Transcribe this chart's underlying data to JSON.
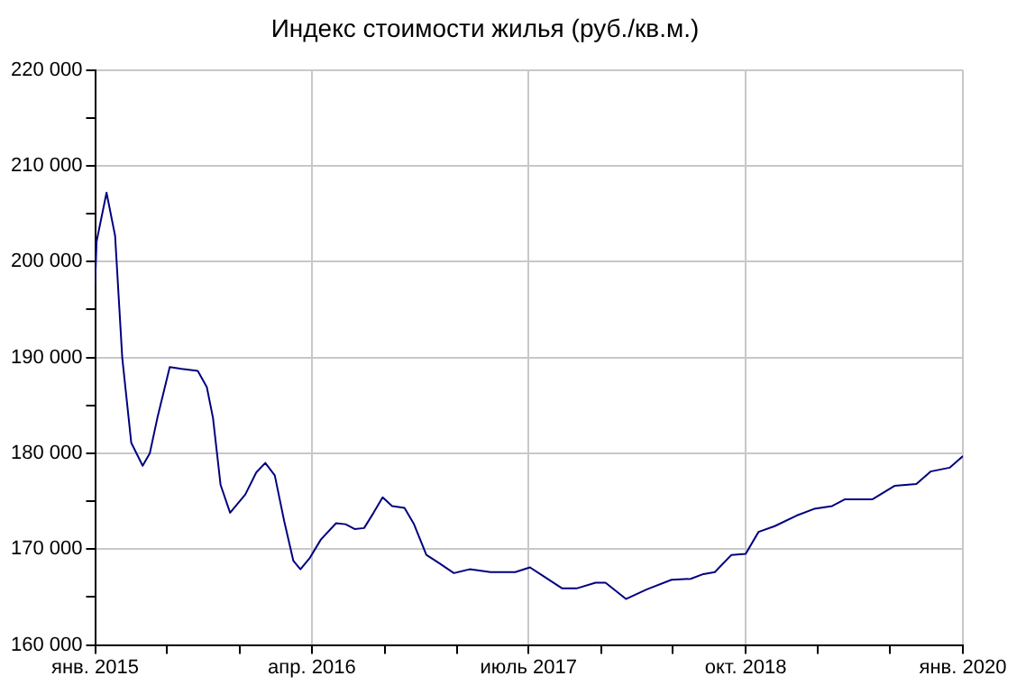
{
  "chart_data": {
    "type": "line",
    "title": "Индекс стоимости жилья (руб./кв.м.)",
    "x": [
      "2015-01-01",
      "2015-01-04",
      "2015-01-25",
      "2015-02-12",
      "2015-02-27",
      "2015-03-18",
      "2015-04-11",
      "2015-04-26",
      "2015-05-12",
      "2015-06-07",
      "2015-07-02",
      "2015-08-05",
      "2015-08-24",
      "2015-09-06",
      "2015-09-22",
      "2015-10-12",
      "2015-11-13",
      "2015-12-06",
      "2015-12-25",
      "2016-01-14",
      "2016-02-03",
      "2016-02-22",
      "2016-03-08",
      "2016-03-28",
      "2016-04-20",
      "2016-05-22",
      "2016-06-11",
      "2016-06-30",
      "2016-07-20",
      "2016-08-09",
      "2016-08-28",
      "2016-09-17",
      "2016-10-13",
      "2016-11-02",
      "2016-11-15",
      "2016-11-28",
      "2016-12-23",
      "2017-01-25",
      "2017-02-27",
      "2017-04-12",
      "2017-06-03",
      "2017-07-04",
      "2017-08-01",
      "2017-09-10",
      "2017-10-10",
      "2017-11-19",
      "2017-12-10",
      "2018-01-22",
      "2018-03-07",
      "2018-04-28",
      "2018-06-07",
      "2018-07-04",
      "2018-07-28",
      "2018-09-01",
      "2018-10-01",
      "2018-10-28",
      "2018-12-01",
      "2019-01-16",
      "2019-02-22",
      "2019-04-01",
      "2019-04-28",
      "2019-06-25",
      "2019-08-10",
      "2019-09-25",
      "2019-10-25",
      "2019-12-04",
      "2020-01-01"
    ],
    "series": [
      {
        "color": "#000080",
        "values": [
          197700,
          202100,
          207200,
          202700,
          190000,
          181100,
          178700,
          180000,
          183700,
          189000,
          188800,
          188600,
          186900,
          183700,
          176700,
          173800,
          175700,
          178000,
          179000,
          177700,
          172900,
          168800,
          167900,
          169100,
          171000,
          172700,
          172600,
          172100,
          172200,
          173800,
          175400,
          174500,
          174300,
          172600,
          171000,
          169400,
          168600,
          167500,
          167900,
          167600,
          167600,
          168100,
          167200,
          165900,
          165900,
          166500,
          166500,
          164800,
          165800,
          166800,
          166900,
          167400,
          167600,
          169400,
          169500,
          171800,
          172400,
          173500,
          174200,
          174500,
          175200,
          175200,
          176600,
          176800,
          178100,
          178500,
          179700
        ]
      }
    ],
    "xlim": [
      "2015-01-01",
      "2020-01-01"
    ],
    "xticks": [
      {
        "value": "2015-01-01",
        "label": "янв. 2015"
      },
      {
        "value": "2015-06-01",
        "label": null
      },
      {
        "value": "2015-11-01",
        "label": null
      },
      {
        "value": "2016-04-01",
        "label": "апр. 2016"
      },
      {
        "value": "2016-09-01",
        "label": null
      },
      {
        "value": "2017-02-01",
        "label": null
      },
      {
        "value": "2017-07-01",
        "label": "июль 2017"
      },
      {
        "value": "2017-12-01",
        "label": null
      },
      {
        "value": "2018-05-01",
        "label": null
      },
      {
        "value": "2018-10-01",
        "label": "окт. 2018"
      },
      {
        "value": "2019-03-01",
        "label": null
      },
      {
        "value": "2019-08-01",
        "label": null
      },
      {
        "value": "2020-01-01",
        "label": "янв. 2020"
      }
    ],
    "ylim": [
      160000,
      220000
    ],
    "yticks": [
      {
        "value": 160000,
        "label": "160 000"
      },
      {
        "value": 165000,
        "label": null
      },
      {
        "value": 170000,
        "label": "170 000"
      },
      {
        "value": 175000,
        "label": null
      },
      {
        "value": 180000,
        "label": "180 000"
      },
      {
        "value": 185000,
        "label": null
      },
      {
        "value": 190000,
        "label": "190 000"
      },
      {
        "value": 195000,
        "label": null
      },
      {
        "value": 200000,
        "label": "200 000"
      },
      {
        "value": 205000,
        "label": null
      },
      {
        "value": 210000,
        "label": "210 000"
      },
      {
        "value": 215000,
        "label": null
      },
      {
        "value": 220000,
        "label": "220 000"
      }
    ],
    "grid": true
  }
}
